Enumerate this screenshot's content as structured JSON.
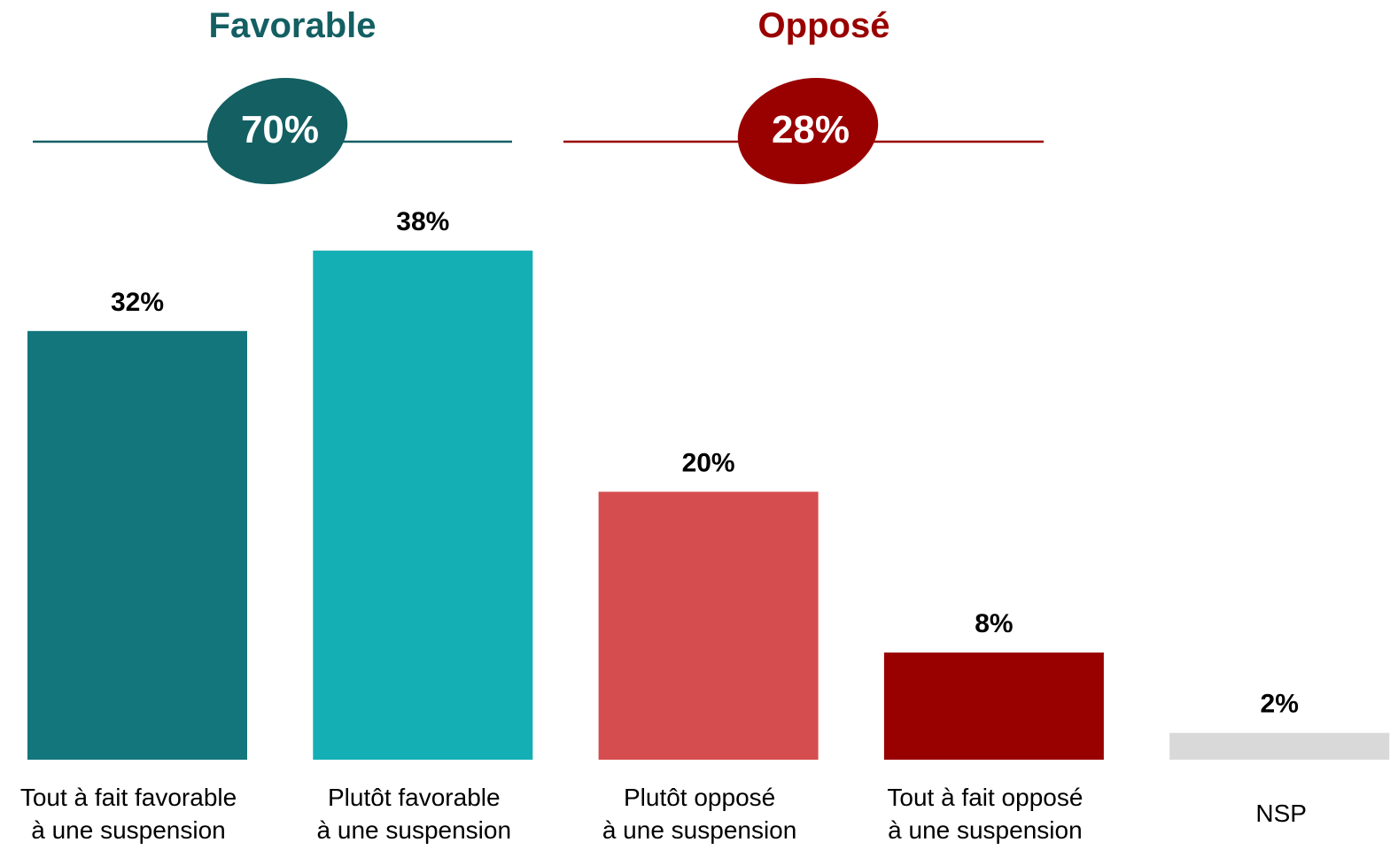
{
  "chart_data": {
    "type": "bar",
    "title": "",
    "xlabel": "",
    "ylabel": "",
    "ylim": [
      0,
      38
    ],
    "grid": false,
    "groups": [
      {
        "label": "Favorable",
        "total_label": "70%",
        "color": "#135f62"
      },
      {
        "label": "Opposé",
        "total_label": "28%",
        "color": "#990000"
      }
    ],
    "categories": [
      {
        "line1": "Tout à fait favorable",
        "line2": "à une suspension"
      },
      {
        "line1": "Plutôt favorable",
        "line2": "à une suspension"
      },
      {
        "line1": "Plutôt opposé",
        "line2": "à une suspension"
      },
      {
        "line1": "Tout à fait opposé",
        "line2": "à une suspension"
      },
      {
        "line1": "NSP",
        "line2": ""
      }
    ],
    "values": [
      32,
      38,
      20,
      8,
      2
    ],
    "value_labels": [
      "32%",
      "38%",
      "20%",
      "8%",
      "2%"
    ],
    "colors": [
      "#12767c",
      "#14afb5",
      "#d64d4f",
      "#990000",
      "#d9d9d9"
    ]
  }
}
